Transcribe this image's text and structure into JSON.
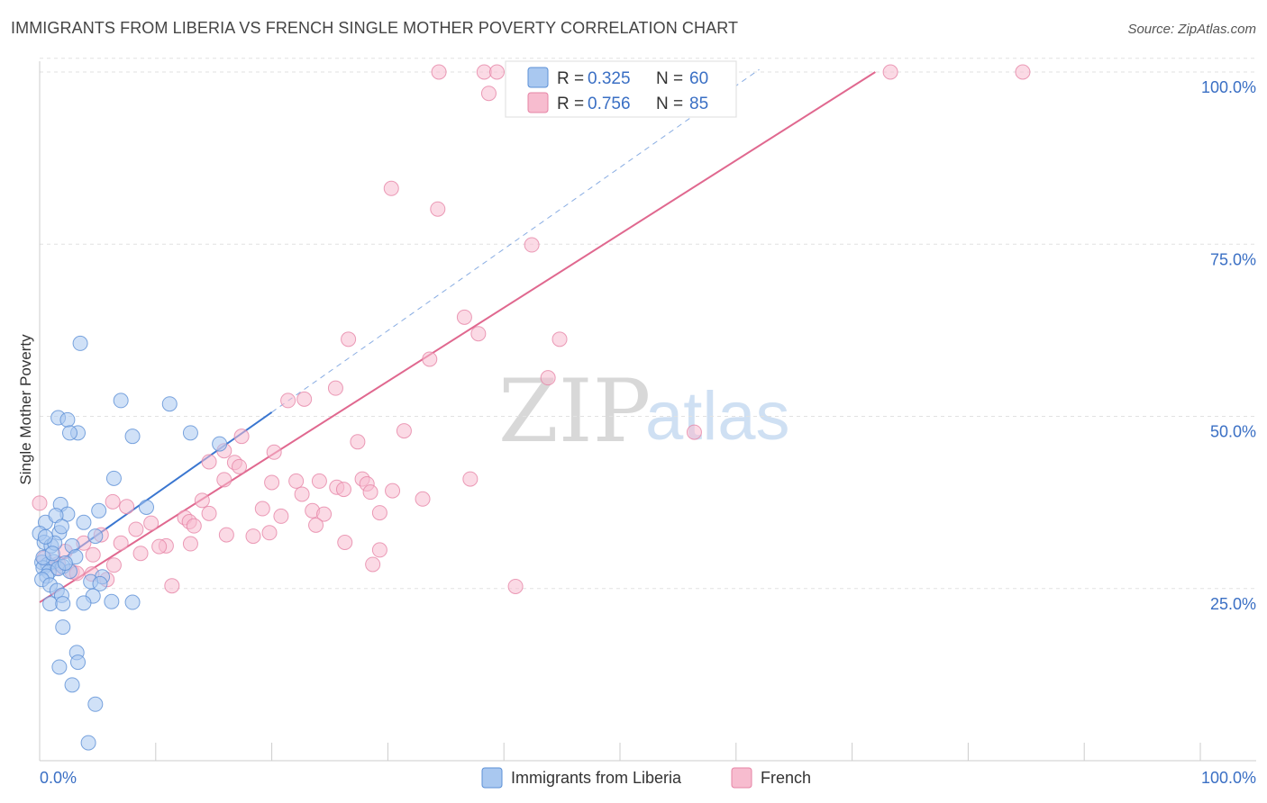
{
  "title": "IMMIGRANTS FROM LIBERIA VS FRENCH SINGLE MOTHER POVERTY CORRELATION CHART",
  "source": "Source: ZipAtlas.com",
  "watermark": {
    "zip": "ZIP",
    "atlas": "atlas"
  },
  "legend_top": {
    "r_label": "R = ",
    "n_label": "N = ",
    "rows": [
      {
        "r": "0.325",
        "n": "60"
      },
      {
        "r": "0.756",
        "n": "85"
      }
    ]
  },
  "legend_bottom": [
    "Immigrants from Liberia",
    "French"
  ],
  "chart_data": {
    "type": "scatter",
    "title": "IMMIGRANTS FROM LIBERIA VS FRENCH SINGLE MOTHER POVERTY CORRELATION CHART",
    "xlabel": "",
    "ylabel": "Single Mother Poverty",
    "xlim": [
      0,
      100
    ],
    "ylim": [
      0,
      102
    ],
    "x_tick_labels": [
      "0.0%",
      "100.0%"
    ],
    "y_ticks": [
      25,
      50,
      75,
      100
    ],
    "y_tick_labels": [
      "25.0%",
      "50.0%",
      "75.0%",
      "100.0%"
    ],
    "grid": true,
    "legend_position": "top-center",
    "colors": {
      "liberia_fill": "#a9c8f0",
      "liberia_stroke": "#5b8fd6",
      "liberia_line": "#3a76d0",
      "french_fill": "#f7bccf",
      "french_stroke": "#e684a6",
      "french_line": "#e0688f",
      "tick_text": "#3a6fc4"
    },
    "series": [
      {
        "name": "Immigrants from Liberia",
        "r": 0.325,
        "n": 60,
        "trend": {
          "x0": 0,
          "y0": 26.9,
          "x1": 20,
          "y1": 50.6,
          "dashed_to_x": 62
        },
        "points": [
          [
            3.5,
            60.6
          ],
          [
            7.0,
            52.3
          ],
          [
            11.2,
            51.8
          ],
          [
            1.6,
            49.8
          ],
          [
            2.4,
            49.5
          ],
          [
            3.3,
            47.6
          ],
          [
            2.6,
            47.6
          ],
          [
            8.0,
            47.1
          ],
          [
            13.0,
            47.6
          ],
          [
            15.5,
            46.0
          ],
          [
            6.4,
            41.0
          ],
          [
            9.2,
            36.8
          ],
          [
            1.8,
            37.2
          ],
          [
            0.5,
            34.6
          ],
          [
            2.4,
            35.8
          ],
          [
            1.4,
            35.6
          ],
          [
            3.8,
            34.6
          ],
          [
            0.0,
            33.0
          ],
          [
            1.7,
            33.1
          ],
          [
            0.4,
            31.7
          ],
          [
            1.0,
            31.2
          ],
          [
            2.8,
            31.2
          ],
          [
            1.3,
            31.6
          ],
          [
            4.8,
            32.6
          ],
          [
            5.1,
            36.3
          ],
          [
            0.2,
            28.8
          ],
          [
            0.7,
            28.5
          ],
          [
            1.2,
            28.9
          ],
          [
            2.0,
            28.2
          ],
          [
            0.3,
            28.0
          ],
          [
            0.8,
            27.4
          ],
          [
            2.6,
            27.5
          ],
          [
            3.1,
            29.6
          ],
          [
            0.6,
            26.8
          ],
          [
            1.6,
            27.9
          ],
          [
            0.2,
            26.3
          ],
          [
            0.9,
            25.5
          ],
          [
            5.4,
            26.7
          ],
          [
            4.4,
            26.0
          ],
          [
            5.2,
            25.7
          ],
          [
            1.5,
            24.7
          ],
          [
            1.9,
            24.0
          ],
          [
            4.6,
            23.9
          ],
          [
            0.9,
            22.8
          ],
          [
            2.0,
            22.8
          ],
          [
            3.8,
            22.9
          ],
          [
            6.2,
            23.1
          ],
          [
            8.0,
            23.0
          ],
          [
            2.0,
            19.4
          ],
          [
            3.2,
            15.7
          ],
          [
            3.3,
            14.3
          ],
          [
            1.7,
            13.6
          ],
          [
            2.8,
            11.0
          ],
          [
            4.8,
            8.2
          ],
          [
            4.2,
            2.6
          ],
          [
            0.3,
            29.5
          ],
          [
            1.1,
            30.1
          ],
          [
            2.2,
            28.7
          ],
          [
            0.5,
            32.5
          ],
          [
            1.9,
            34.0
          ]
        ]
      },
      {
        "name": "French",
        "r": 0.756,
        "n": 85,
        "trend": {
          "x0": 0,
          "y0": 23.0,
          "x1": 72,
          "y1": 100.0
        },
        "points": [
          [
            34.4,
            100.0
          ],
          [
            38.3,
            100.0
          ],
          [
            39.4,
            100.0
          ],
          [
            38.7,
            96.9
          ],
          [
            42.9,
            100.0
          ],
          [
            46.1,
            100.0
          ],
          [
            49.5,
            100.0
          ],
          [
            49.8,
            100.0
          ],
          [
            73.3,
            100.0
          ],
          [
            84.7,
            100.0
          ],
          [
            30.3,
            83.1
          ],
          [
            34.3,
            80.1
          ],
          [
            42.4,
            74.9
          ],
          [
            36.6,
            64.4
          ],
          [
            37.8,
            62.0
          ],
          [
            26.6,
            61.2
          ],
          [
            44.8,
            61.2
          ],
          [
            33.6,
            58.3
          ],
          [
            43.8,
            55.6
          ],
          [
            21.4,
            52.3
          ],
          [
            22.8,
            52.5
          ],
          [
            25.5,
            54.1
          ],
          [
            31.4,
            47.9
          ],
          [
            56.4,
            47.7
          ],
          [
            27.4,
            46.3
          ],
          [
            20.2,
            44.8
          ],
          [
            15.9,
            45.0
          ],
          [
            17.4,
            47.1
          ],
          [
            14.6,
            43.4
          ],
          [
            16.8,
            43.3
          ],
          [
            17.2,
            42.7
          ],
          [
            15.9,
            40.8
          ],
          [
            20.0,
            40.4
          ],
          [
            22.1,
            40.6
          ],
          [
            24.1,
            40.6
          ],
          [
            27.8,
            40.9
          ],
          [
            37.1,
            40.9
          ],
          [
            28.2,
            40.2
          ],
          [
            25.6,
            39.7
          ],
          [
            26.2,
            39.4
          ],
          [
            28.5,
            39.0
          ],
          [
            30.4,
            39.2
          ],
          [
            22.6,
            38.7
          ],
          [
            33.0,
            38.0
          ],
          [
            14.0,
            37.8
          ],
          [
            6.3,
            37.6
          ],
          [
            7.5,
            36.9
          ],
          [
            19.2,
            36.6
          ],
          [
            23.5,
            36.3
          ],
          [
            24.5,
            35.8
          ],
          [
            29.3,
            36.0
          ],
          [
            14.6,
            35.9
          ],
          [
            20.8,
            35.5
          ],
          [
            12.5,
            35.3
          ],
          [
            12.9,
            34.7
          ],
          [
            9.6,
            34.5
          ],
          [
            13.3,
            34.1
          ],
          [
            23.8,
            34.2
          ],
          [
            8.3,
            33.6
          ],
          [
            16.1,
            32.8
          ],
          [
            19.8,
            33.1
          ],
          [
            18.4,
            32.6
          ],
          [
            5.3,
            32.8
          ],
          [
            3.8,
            31.6
          ],
          [
            10.9,
            31.2
          ],
          [
            10.3,
            31.1
          ],
          [
            13.0,
            31.5
          ],
          [
            26.3,
            31.7
          ],
          [
            7.0,
            31.6
          ],
          [
            29.3,
            30.6
          ],
          [
            8.7,
            30.1
          ],
          [
            4.6,
            29.9
          ],
          [
            2.2,
            30.4
          ],
          [
            0.4,
            29.4
          ],
          [
            1.6,
            28.6
          ],
          [
            6.4,
            28.4
          ],
          [
            28.7,
            28.5
          ],
          [
            1.5,
            28.0
          ],
          [
            2.8,
            27.4
          ],
          [
            3.2,
            27.2
          ],
          [
            4.5,
            27.1
          ],
          [
            5.8,
            26.3
          ],
          [
            11.4,
            25.4
          ],
          [
            41.0,
            25.3
          ],
          [
            0.0,
            37.4
          ]
        ]
      }
    ]
  }
}
